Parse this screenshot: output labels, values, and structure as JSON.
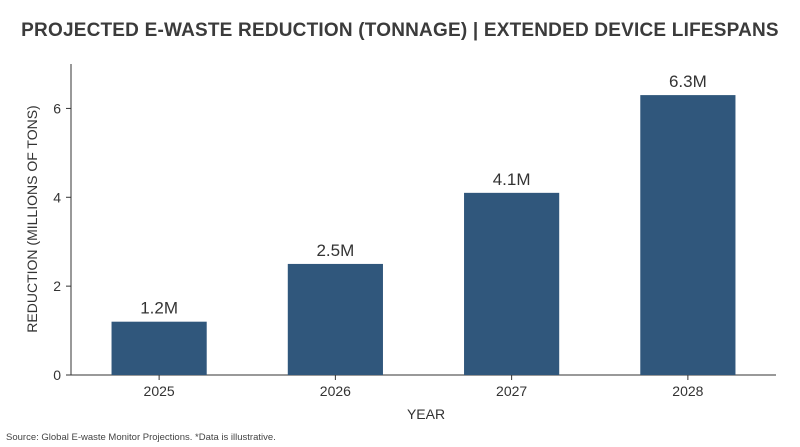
{
  "chart_data": {
    "type": "bar",
    "title": "PROJECTED E-WASTE REDUCTION (TONNAGE) | EXTENDED DEVICE LIFESPANS",
    "xlabel": "YEAR",
    "ylabel": "REDUCTION (MILLIONS OF TONS)",
    "categories": [
      "2025",
      "2026",
      "2027",
      "2028"
    ],
    "values": [
      1.2,
      2.5,
      4.1,
      6.3
    ],
    "data_labels": [
      "1.2M",
      "2.5M",
      "4.1M",
      "6.3M"
    ],
    "ylim": [
      0,
      7
    ],
    "yticks": [
      0,
      2,
      4,
      6
    ],
    "grid": false,
    "bar_color": "#30577c"
  },
  "footer": {
    "source": "Source: Global E-waste Monitor Projections. *Data is illustrative."
  }
}
